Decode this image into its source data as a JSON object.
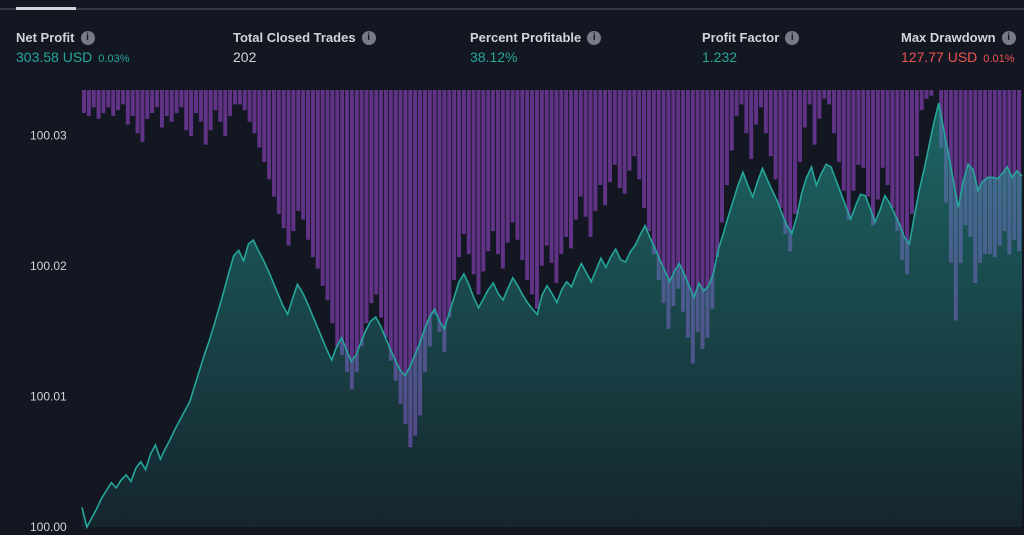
{
  "stats": {
    "net_profit": {
      "label": "Net Profit",
      "value": "303.58 USD",
      "sub": "0.03%"
    },
    "total_closed_trades": {
      "label": "Total Closed Trades",
      "value": "202"
    },
    "percent_profitable": {
      "label": "Percent Profitable",
      "value": "38.12%"
    },
    "profit_factor": {
      "label": "Profit Factor",
      "value": "1.232"
    },
    "max_drawdown": {
      "label": "Max Drawdown",
      "value": "127.77 USD",
      "sub": "0.01%"
    }
  },
  "icons": {
    "info": "info-icon"
  },
  "colors": {
    "background": "#131722",
    "equity_line": "#26a69a",
    "drawdown": "#7e3fae",
    "text": "#d1d4dc",
    "negative": "#ef5350"
  },
  "chart_data": {
    "type": "area",
    "title": "",
    "xlabel": "",
    "ylabel": "",
    "ylim": [
      100.0,
      100.0335
    ],
    "yticks": [
      "100.03",
      "100.02",
      "100.01",
      "100.00"
    ],
    "ytick_values": [
      100.03,
      100.02,
      100.01,
      100.0
    ],
    "grid": false,
    "equity": [
      100.0015,
      100.0,
      100.0007,
      100.0014,
      100.0022,
      100.0028,
      100.0034,
      100.003,
      100.0036,
      100.004,
      100.0035,
      100.0045,
      100.005,
      100.0044,
      100.0056,
      100.0063,
      100.0052,
      100.006,
      100.0067,
      100.0075,
      100.0082,
      100.0089,
      100.0096,
      100.0108,
      100.012,
      100.0132,
      100.0143,
      100.0155,
      100.0168,
      100.0181,
      100.0195,
      100.0208,
      100.0212,
      100.0204,
      100.0217,
      100.022,
      100.0212,
      100.0205,
      100.0197,
      100.0188,
      100.0179,
      100.017,
      100.0163,
      100.0175,
      100.0186,
      100.018,
      100.0172,
      100.0163,
      100.0154,
      100.0145,
      100.0136,
      100.0128,
      100.0138,
      100.0145,
      100.0136,
      100.0127,
      100.0132,
      100.0142,
      100.0151,
      100.0158,
      100.0161,
      100.0154,
      100.0145,
      100.0136,
      100.0128,
      100.012,
      100.0116,
      100.0123,
      100.0132,
      100.0141,
      100.0152,
      100.0161,
      100.0167,
      100.0158,
      100.0152,
      100.0164,
      100.0176,
      100.0188,
      100.0194,
      100.0186,
      100.0176,
      100.0168,
      100.0175,
      100.0182,
      100.0187,
      100.0179,
      100.0174,
      100.0183,
      100.0191,
      100.0185,
      100.0178,
      100.0172,
      100.0167,
      100.0163,
      100.0178,
      100.0185,
      100.0179,
      100.0172,
      100.0182,
      100.0188,
      100.0184,
      100.0194,
      100.0202,
      100.0195,
      100.0188,
      100.0197,
      100.0206,
      100.0199,
      100.0207,
      100.0213,
      100.0205,
      100.0203,
      100.0211,
      100.0216,
      100.0224,
      100.0231,
      100.0222,
      100.0214,
      100.0205,
      100.0197,
      100.0188,
      100.0196,
      100.0202,
      100.0194,
      100.0185,
      100.0176,
      100.0187,
      100.0181,
      100.0185,
      100.0195,
      100.0213,
      100.0225,
      100.0238,
      100.025,
      100.0262,
      100.0272,
      100.0262,
      100.0253,
      100.0265,
      100.0275,
      100.0266,
      100.0258,
      100.025,
      100.024,
      100.0231,
      100.0225,
      100.0238,
      100.0256,
      100.0268,
      100.0276,
      100.0262,
      100.0271,
      100.0278,
      100.0276,
      100.0266,
      100.0256,
      100.0246,
      100.0236,
      100.0246,
      100.0255,
      100.0254,
      100.0244,
      100.0234,
      100.0243,
      100.0254,
      100.0248,
      100.024,
      100.0232,
      100.0222,
      100.0217,
      100.0238,
      100.0258,
      100.0274,
      100.0292,
      100.031,
      100.0325,
      100.0305,
      100.0286,
      100.0265,
      100.0245,
      100.0265,
      100.0278,
      100.0274,
      100.0258,
      100.0265,
      100.0268,
      100.0268,
      100.0267,
      100.0271,
      100.0276,
      100.0268,
      100.0273,
      100.0269
    ],
    "drawdown_percent": [
      0.0,
      0.0,
      0.0,
      0.0,
      0.0,
      0.0,
      0.0,
      0.0,
      0.0,
      0.0,
      0.0,
      0.0,
      0.0,
      0.0,
      0.0,
      0.0,
      0.0,
      0.0,
      0.0,
      0.0,
      0.0,
      0.0,
      0.0,
      0.0,
      0.0,
      0.0,
      0.0,
      0.0,
      0.0,
      0.0,
      0.0,
      0.0,
      0.0,
      0.0,
      0.0,
      0.0,
      0.0,
      0.0,
      0.0,
      0.0,
      0.0,
      0.0,
      0.0,
      0.0,
      0.0,
      0.0,
      0.0,
      0.0,
      0.0,
      0.0,
      0.0,
      0.0,
      0.0,
      0.0,
      0.0,
      0.0,
      0.0,
      0.0,
      0.0,
      0.0,
      0.0,
      0.0,
      0.0,
      0.0,
      0.0,
      0.0,
      0.0,
      0.0,
      0.0,
      0.0,
      0.0,
      0.0,
      0.0,
      0.0,
      0.0,
      0.0,
      0.0,
      0.0,
      0.0,
      0.0,
      0.0,
      0.0,
      0.0,
      0.0,
      0.0,
      0.0,
      0.0,
      0.0,
      0.0,
      0.0,
      0.0,
      0.0,
      0.0,
      0.0,
      0.0,
      0.0,
      0.0,
      0.0,
      0.0,
      0.0,
      0.0,
      0.0,
      0.0,
      0.0,
      0.0,
      0.0,
      0.0,
      0.0,
      0.0,
      0.0,
      0.0,
      0.0,
      0.0,
      0.0,
      0.0,
      0.0,
      0.0,
      0.0,
      0.0,
      0.0,
      0.0,
      0.0,
      0.0,
      0.0,
      0.0,
      0.0,
      0.0,
      0.0,
      0.0,
      0.0,
      0.0,
      0.0,
      0.0,
      0.0,
      0.0,
      0.0,
      0.0,
      0.0,
      0.0,
      0.0,
      0.0,
      0.0,
      0.0,
      0.0,
      0.0,
      0.0,
      0.0,
      0.0,
      0.0,
      0.0,
      0.0,
      0.0,
      0.0,
      0.0,
      0.0,
      0.0,
      0.0,
      0.0,
      0.0,
      0.0,
      0.0,
      0.0,
      0.0,
      0.0,
      0.0,
      0.0,
      0.0,
      0.0,
      0.0,
      0.0,
      0.0,
      0.0,
      0.0,
      0.0,
      0.0,
      0.0,
      0.0,
      0.0,
      0.0,
      0.0,
      0.0,
      0.0,
      0.0,
      0.0,
      0.0,
      0.0,
      0.0,
      0.0,
      0.0,
      0.0,
      0.0,
      0.0,
      0.0
    ],
    "drawdown_bars": [
      0.0008,
      0.0009,
      0.0006,
      0.001,
      0.0008,
      0.0006,
      0.0009,
      0.0007,
      0.0005,
      0.0012,
      0.0009,
      0.0015,
      0.0018,
      0.001,
      0.0008,
      0.0006,
      0.0013,
      0.0009,
      0.0011,
      0.0008,
      0.0006,
      0.0014,
      0.0016,
      0.0008,
      0.0011,
      0.0019,
      0.0014,
      0.0007,
      0.0011,
      0.0016,
      0.0009,
      0.0005,
      0.0005,
      0.0007,
      0.0011,
      0.0015,
      0.002,
      0.0025,
      0.0031,
      0.0037,
      0.0043,
      0.0048,
      0.0054,
      0.0049,
      0.0042,
      0.0045,
      0.0052,
      0.0058,
      0.0062,
      0.0068,
      0.0073,
      0.0081,
      0.0089,
      0.0092,
      0.0098,
      0.0104,
      0.0098,
      0.0089,
      0.0081,
      0.0074,
      0.0071,
      0.0079,
      0.0086,
      0.0094,
      0.0101,
      0.0109,
      0.0116,
      0.0124,
      0.012,
      0.0113,
      0.0098,
      0.0089,
      0.0078,
      0.0084,
      0.0091,
      0.0079,
      0.0066,
      0.0058,
      0.005,
      0.0057,
      0.0064,
      0.0071,
      0.0063,
      0.0056,
      0.0049,
      0.0057,
      0.0062,
      0.0053,
      0.0046,
      0.0052,
      0.0059,
      0.0066,
      0.0071,
      0.0076,
      0.0061,
      0.0054,
      0.006,
      0.0067,
      0.0057,
      0.0051,
      0.0055,
      0.0045,
      0.0037,
      0.0044,
      0.0051,
      0.0042,
      0.0033,
      0.004,
      0.0032,
      0.0026,
      0.0034,
      0.0036,
      0.0028,
      0.0023,
      0.0031,
      0.0041,
      0.0049,
      0.0057,
      0.0066,
      0.0074,
      0.0083,
      0.0075,
      0.0069,
      0.0077,
      0.0086,
      0.0095,
      0.0084,
      0.009,
      0.0086,
      0.0076,
      0.0058,
      0.0046,
      0.0033,
      0.0021,
      0.0009,
      0.0005,
      0.0015,
      0.0024,
      0.0012,
      0.0006,
      0.0015,
      0.0023,
      0.0031,
      0.0041,
      0.005,
      0.0056,
      0.0043,
      0.0025,
      0.0013,
      0.0005,
      0.0019,
      0.001,
      0.0003,
      0.0005,
      0.0015,
      0.0025,
      0.0035,
      0.0045,
      0.0035,
      0.0026,
      0.0027,
      0.0037,
      0.0047,
      0.0038,
      0.0027,
      0.0033,
      0.0041,
      0.0049,
      0.0059,
      0.0064,
      0.0043,
      0.0023,
      0.0007,
      0.0003,
      0.0002,
      0.0,
      0.002,
      0.0039,
      0.006,
      0.008,
      0.006,
      0.0047,
      0.0051,
      0.0067,
      0.006,
      0.0057,
      0.0057,
      0.0058,
      0.0054,
      0.0049,
      0.0057,
      0.0052,
      0.0056
    ]
  }
}
